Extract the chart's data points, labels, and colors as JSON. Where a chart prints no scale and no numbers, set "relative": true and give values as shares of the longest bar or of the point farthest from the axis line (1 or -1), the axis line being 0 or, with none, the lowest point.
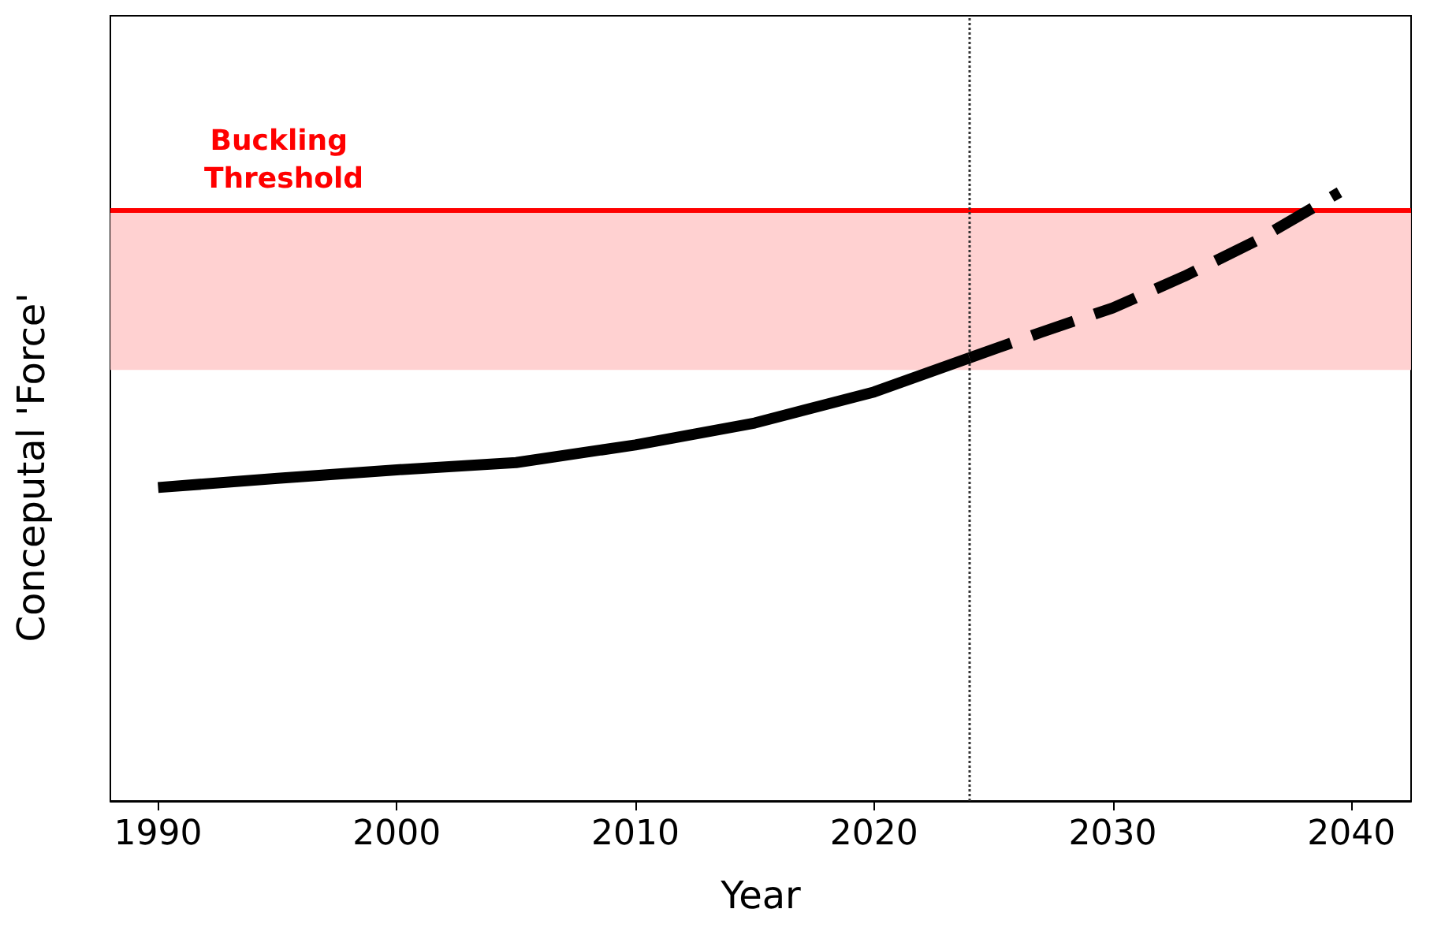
{
  "chart_data": {
    "type": "line",
    "xlabel": "Year",
    "ylabel": "Conceputal 'Force'",
    "relative": true,
    "xlim": [
      1988,
      2042.5
    ],
    "xticks": [
      1990,
      2000,
      2010,
      2020,
      2030,
      2040
    ],
    "series": [
      {
        "color": "#000000",
        "line_style": "solid",
        "x": [
          1990,
          1995,
          2000,
          2005,
          2010,
          2015,
          2020,
          2024
        ],
        "values": [
          0.515,
          0.53,
          0.544,
          0.556,
          0.585,
          0.621,
          0.672,
          0.728
        ]
      },
      {
        "color": "#000000",
        "line_style": "dashed",
        "x": [
          2024,
          2027,
          2030,
          2033,
          2036,
          2039.5
        ],
        "values": [
          0.728,
          0.77,
          0.81,
          0.862,
          0.92,
          1.0
        ]
      }
    ],
    "ref_lines": [
      {
        "axis": "y",
        "value": 0.969,
        "label": "Buckling Threshold",
        "color": "#ff0000",
        "line_style": "solid"
      },
      {
        "axis": "x",
        "value": 2024,
        "color": "#333333",
        "line_style": "dotted"
      }
    ],
    "bands": [
      {
        "axis": "y",
        "from": 0.708,
        "to": 0.969,
        "color": "#ffcccc"
      }
    ]
  }
}
